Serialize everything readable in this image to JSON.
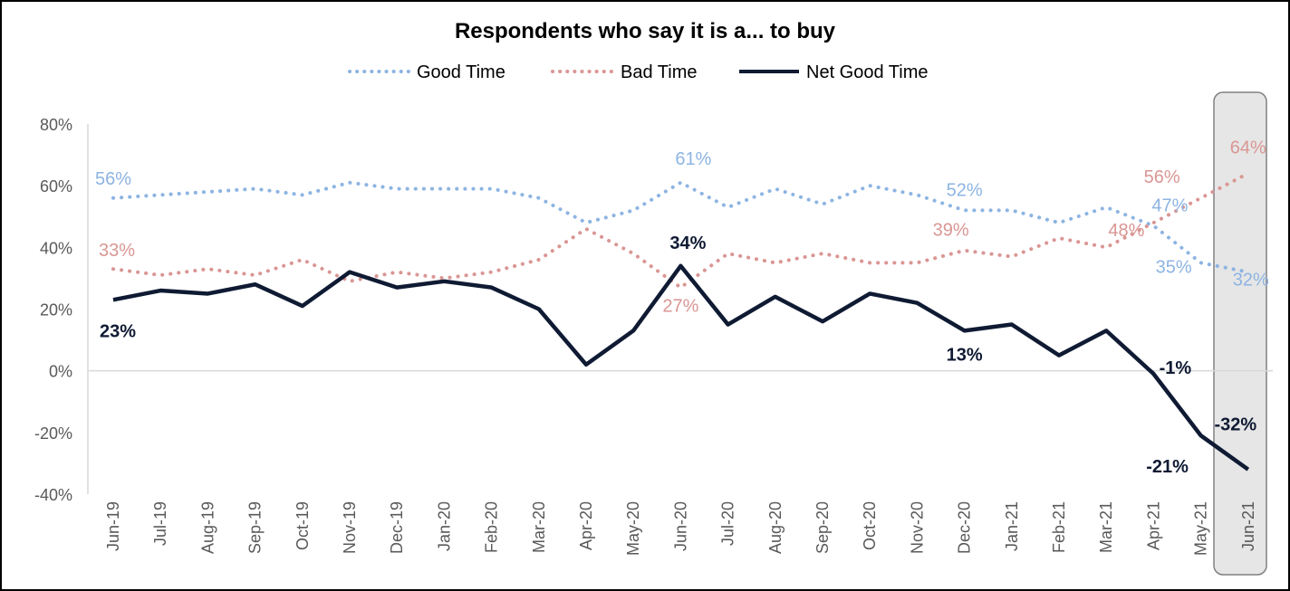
{
  "chart_data": {
    "type": "line",
    "title": "Respondents who say it is a... to buy",
    "categories": [
      "Jun-19",
      "Jul-19",
      "Aug-19",
      "Sep-19",
      "Oct-19",
      "Nov-19",
      "Dec-19",
      "Jan-20",
      "Feb-20",
      "Mar-20",
      "Apr-20",
      "May-20",
      "Jun-20",
      "Jul-20",
      "Aug-20",
      "Sep-20",
      "Oct-20",
      "Nov-20",
      "Dec-20",
      "Jan-21",
      "Feb-21",
      "Mar-21",
      "Apr-21",
      "May-21",
      "Jun-21"
    ],
    "y_tick_labels": [
      "80%",
      "60%",
      "40%",
      "20%",
      "0%",
      "-20%",
      "-40%"
    ],
    "y_ticks": [
      80,
      60,
      40,
      20,
      0,
      -20,
      -40
    ],
    "ylim": [
      -40,
      80
    ],
    "legend_position": "top",
    "grid": false,
    "highlight_category": "Jun-21",
    "series": [
      {
        "name": "Good Time",
        "style": "dotted",
        "color": "#8DB4E2",
        "values": [
          56,
          57,
          58,
          59,
          57,
          61,
          59,
          59,
          59,
          56,
          48,
          52,
          61,
          53,
          59,
          54,
          60,
          57,
          52,
          52,
          48,
          53,
          47,
          35,
          32
        ],
        "labels": [
          {
            "index": 0,
            "text": "56%"
          },
          {
            "index": 12,
            "text": "61%"
          },
          {
            "index": 18,
            "text": "52%"
          },
          {
            "index": 22,
            "text": "47%"
          },
          {
            "index": 23,
            "text": "35%"
          },
          {
            "index": 24,
            "text": "32%"
          }
        ]
      },
      {
        "name": "Bad Time",
        "style": "dotted",
        "color": "#D99694",
        "values": [
          33,
          31,
          33,
          31,
          36,
          29,
          32,
          30,
          32,
          36,
          46,
          38,
          27,
          38,
          35,
          38,
          35,
          35,
          39,
          37,
          43,
          40,
          48,
          56,
          64
        ],
        "labels": [
          {
            "index": 0,
            "text": "33%"
          },
          {
            "index": 12,
            "text": "27%"
          },
          {
            "index": 18,
            "text": "39%"
          },
          {
            "index": 22,
            "text": "48%"
          },
          {
            "index": 23,
            "text": "56%"
          },
          {
            "index": 24,
            "text": "64%"
          }
        ]
      },
      {
        "name": "Net Good Time",
        "style": "solid",
        "color": "#0F1A33",
        "values": [
          23,
          26,
          25,
          28,
          21,
          32,
          27,
          29,
          27,
          20,
          2,
          13,
          34,
          15,
          24,
          16,
          25,
          22,
          13,
          15,
          5,
          13,
          -1,
          -21,
          -32
        ],
        "labels": [
          {
            "index": 0,
            "text": "23%"
          },
          {
            "index": 12,
            "text": "34%"
          },
          {
            "index": 18,
            "text": "13%"
          },
          {
            "index": 22,
            "text": "-1%"
          },
          {
            "index": 23,
            "text": "-21%"
          },
          {
            "index": 24,
            "text": "-32%"
          }
        ]
      }
    ]
  }
}
